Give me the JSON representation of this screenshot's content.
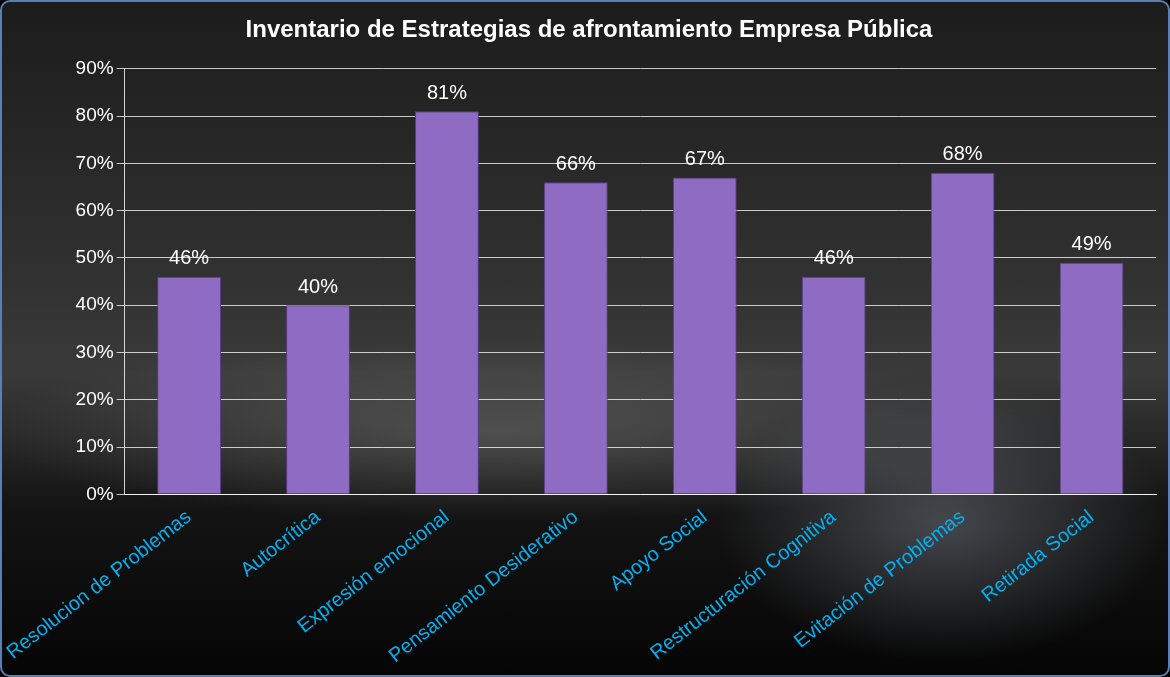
{
  "chart_data": {
    "type": "bar",
    "title": "Inventario de Estrategias de afrontamiento Empresa Pública",
    "categories": [
      "Resolucion de Problemas",
      "Autocrítica",
      "Expresión emocional",
      "Pensamiento Desiderativo",
      "Apoyo Social",
      "Restructuración Cognitiva",
      "Evitación de Problemas",
      "Retirada Social"
    ],
    "values": [
      46,
      40,
      81,
      66,
      67,
      46,
      68,
      49
    ],
    "value_labels": [
      "46%",
      "40%",
      "81%",
      "66%",
      "67%",
      "46%",
      "68%",
      "49%"
    ],
    "color": "#8e6cc4",
    "ylim": [
      0,
      90
    ],
    "yticks": [
      {
        "value": 0,
        "label": "0%"
      },
      {
        "value": 10,
        "label": "10%"
      },
      {
        "value": 20,
        "label": "20%"
      },
      {
        "value": 30,
        "label": "30%"
      },
      {
        "value": 40,
        "label": "40%"
      },
      {
        "value": 50,
        "label": "50%"
      },
      {
        "value": 60,
        "label": "60%"
      },
      {
        "value": 70,
        "label": "70%"
      },
      {
        "value": 80,
        "label": "80%"
      },
      {
        "value": 90,
        "label": "90%"
      }
    ],
    "grid": true,
    "data_labels": true
  }
}
